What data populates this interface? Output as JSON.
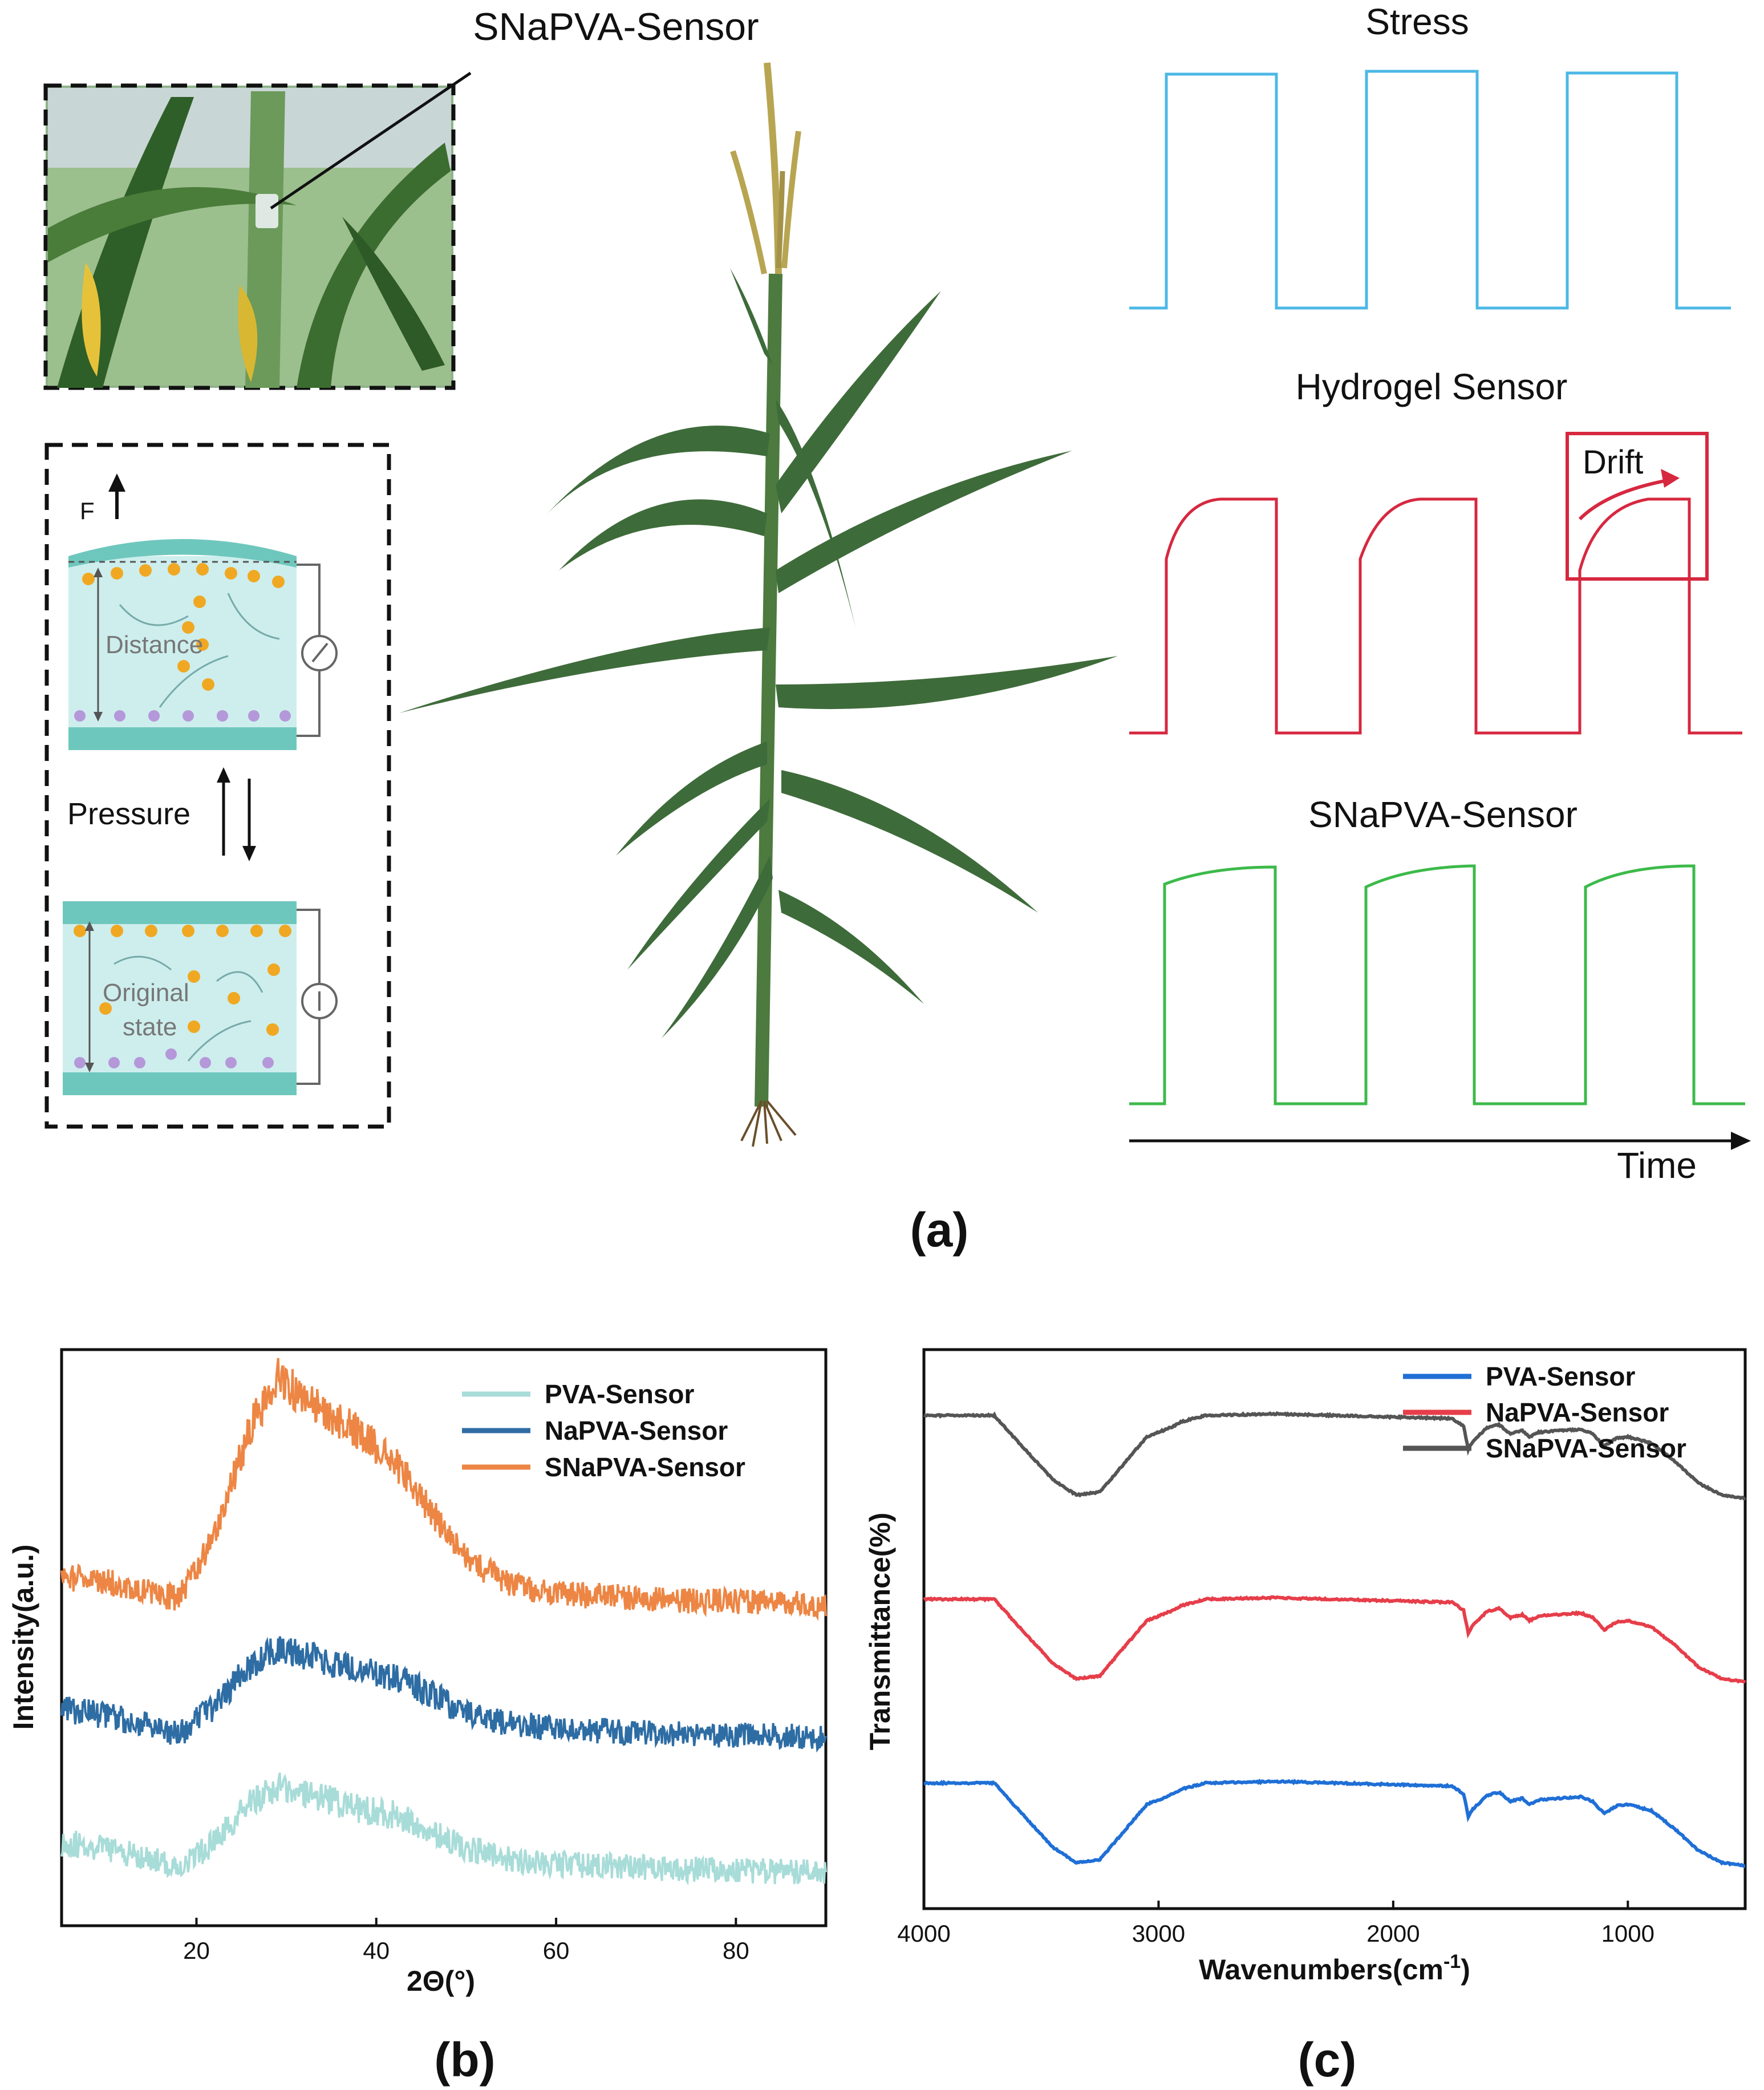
{
  "panel_a": {
    "label": "(a)",
    "photo_caption": "SNaPVA-Sensor",
    "schematic": {
      "force_label": "F",
      "distance_label": "Distance",
      "pressure_label": "Pressure",
      "original_label_1": "Original",
      "original_label_2": "state"
    },
    "signals": [
      {
        "title": "Stress",
        "color": "#4db8e6",
        "shape": "square"
      },
      {
        "title": "Hydrogel Sensor",
        "color": "#d6283f",
        "shape": "drift"
      },
      {
        "title": "SNaPVA-Sensor",
        "color": "#3cba4a",
        "shape": "stable"
      }
    ],
    "drift_label": "Drift",
    "time_label": "Time"
  },
  "panel_b": {
    "label": "(b)",
    "chart_data": {
      "type": "line",
      "title": "",
      "xlabel": "2Θ(°)",
      "ylabel": "Intensity(a.u.)",
      "xlim": [
        5,
        90
      ],
      "xticks": [
        20,
        40,
        60,
        80
      ],
      "yticks": [],
      "legend_position": "top-right",
      "series": [
        {
          "name": "PVA-Sensor",
          "color": "#a8dcd8",
          "offset": 0,
          "points": [
            [
              5,
              0.45
            ],
            [
              10,
              0.4
            ],
            [
              15,
              0.3
            ],
            [
              18,
              0.22
            ],
            [
              22,
              0.45
            ],
            [
              26,
              0.8
            ],
            [
              29,
              0.95
            ],
            [
              33,
              0.88
            ],
            [
              38,
              0.75
            ],
            [
              42,
              0.7
            ],
            [
              46,
              0.55
            ],
            [
              50,
              0.4
            ],
            [
              55,
              0.3
            ],
            [
              60,
              0.26
            ],
            [
              70,
              0.22
            ],
            [
              80,
              0.2
            ],
            [
              90,
              0.18
            ]
          ]
        },
        {
          "name": "NaPVA-Sensor",
          "color": "#2e6da4",
          "offset": 1.2,
          "points": [
            [
              5,
              0.45
            ],
            [
              10,
              0.4
            ],
            [
              15,
              0.3
            ],
            [
              18,
              0.22
            ],
            [
              22,
              0.48
            ],
            [
              26,
              0.85
            ],
            [
              29,
              1.0
            ],
            [
              33,
              0.92
            ],
            [
              38,
              0.82
            ],
            [
              42,
              0.75
            ],
            [
              46,
              0.6
            ],
            [
              50,
              0.42
            ],
            [
              55,
              0.32
            ],
            [
              60,
              0.28
            ],
            [
              70,
              0.24
            ],
            [
              80,
              0.22
            ],
            [
              90,
              0.2
            ]
          ]
        },
        {
          "name": "SNaPVA-Sensor",
          "color": "#ed8644",
          "offset": 2.4,
          "points": [
            [
              5,
              0.45
            ],
            [
              10,
              0.4
            ],
            [
              15,
              0.3
            ],
            [
              18,
              0.25
            ],
            [
              22,
              0.8
            ],
            [
              26,
              1.8
            ],
            [
              29,
              2.25
            ],
            [
              33,
              2.0
            ],
            [
              38,
              1.75
            ],
            [
              42,
              1.5
            ],
            [
              46,
              1.05
            ],
            [
              50,
              0.6
            ],
            [
              55,
              0.38
            ],
            [
              60,
              0.3
            ],
            [
              70,
              0.25
            ],
            [
              80,
              0.22
            ],
            [
              90,
              0.2
            ]
          ]
        }
      ]
    }
  },
  "panel_c": {
    "label": "(c)",
    "chart_data": {
      "type": "line",
      "title": "",
      "xlabel": "Wavenumbers(cm",
      "xlabel_sup": "-1",
      "xlabel_end": ")",
      "ylabel": "Transmittance(%)",
      "xlim": [
        4000,
        500
      ],
      "xticks": [
        4000,
        3000,
        2000,
        1000
      ],
      "yticks": [],
      "legend_position": "top-right",
      "series": [
        {
          "name": "PVA-Sensor",
          "color": "#1f6fd6",
          "offset": 0,
          "points": [
            [
              4000,
              0.92
            ],
            [
              3700,
              0.92
            ],
            [
              3600,
              0.75
            ],
            [
              3450,
              0.5
            ],
            [
              3350,
              0.4
            ],
            [
              3250,
              0.42
            ],
            [
              3150,
              0.6
            ],
            [
              3050,
              0.78
            ],
            [
              2950,
              0.84
            ],
            [
              2900,
              0.88
            ],
            [
              2800,
              0.92
            ],
            [
              2500,
              0.93
            ],
            [
              2000,
              0.91
            ],
            [
              1750,
              0.9
            ],
            [
              1700,
              0.85
            ],
            [
              1680,
              0.7
            ],
            [
              1660,
              0.75
            ],
            [
              1600,
              0.84
            ],
            [
              1550,
              0.86
            ],
            [
              1500,
              0.8
            ],
            [
              1450,
              0.82
            ],
            [
              1420,
              0.78
            ],
            [
              1380,
              0.81
            ],
            [
              1300,
              0.82
            ],
            [
              1200,
              0.83
            ],
            [
              1150,
              0.8
            ],
            [
              1100,
              0.72
            ],
            [
              1050,
              0.77
            ],
            [
              1000,
              0.78
            ],
            [
              900,
              0.74
            ],
            [
              800,
              0.62
            ],
            [
              700,
              0.48
            ],
            [
              600,
              0.4
            ],
            [
              500,
              0.38
            ]
          ]
        },
        {
          "name": "NaPVA-Sensor",
          "color": "#e63e4a",
          "offset": 1.2,
          "points": [
            [
              4000,
              0.92
            ],
            [
              3700,
              0.92
            ],
            [
              3600,
              0.75
            ],
            [
              3450,
              0.5
            ],
            [
              3350,
              0.4
            ],
            [
              3250,
              0.42
            ],
            [
              3150,
              0.6
            ],
            [
              3050,
              0.78
            ],
            [
              2950,
              0.84
            ],
            [
              2900,
              0.88
            ],
            [
              2800,
              0.92
            ],
            [
              2500,
              0.93
            ],
            [
              2000,
              0.91
            ],
            [
              1750,
              0.9
            ],
            [
              1700,
              0.85
            ],
            [
              1680,
              0.7
            ],
            [
              1660,
              0.75
            ],
            [
              1600,
              0.84
            ],
            [
              1550,
              0.86
            ],
            [
              1500,
              0.8
            ],
            [
              1450,
              0.82
            ],
            [
              1420,
              0.78
            ],
            [
              1380,
              0.81
            ],
            [
              1300,
              0.82
            ],
            [
              1200,
              0.83
            ],
            [
              1150,
              0.8
            ],
            [
              1100,
              0.72
            ],
            [
              1050,
              0.77
            ],
            [
              1000,
              0.78
            ],
            [
              900,
              0.74
            ],
            [
              800,
              0.62
            ],
            [
              700,
              0.48
            ],
            [
              600,
              0.4
            ],
            [
              500,
              0.38
            ]
          ]
        },
        {
          "name": "SNaPVA-Sensor",
          "color": "#555555",
          "offset": 2.4,
          "points": [
            [
              4000,
              0.92
            ],
            [
              3700,
              0.92
            ],
            [
              3600,
              0.75
            ],
            [
              3450,
              0.5
            ],
            [
              3350,
              0.4
            ],
            [
              3250,
              0.42
            ],
            [
              3150,
              0.6
            ],
            [
              3050,
              0.78
            ],
            [
              2950,
              0.84
            ],
            [
              2900,
              0.88
            ],
            [
              2800,
              0.92
            ],
            [
              2500,
              0.93
            ],
            [
              2000,
              0.91
            ],
            [
              1750,
              0.9
            ],
            [
              1700,
              0.85
            ],
            [
              1680,
              0.7
            ],
            [
              1660,
              0.75
            ],
            [
              1600,
              0.84
            ],
            [
              1550,
              0.86
            ],
            [
              1500,
              0.8
            ],
            [
              1450,
              0.82
            ],
            [
              1420,
              0.78
            ],
            [
              1380,
              0.81
            ],
            [
              1300,
              0.82
            ],
            [
              1200,
              0.83
            ],
            [
              1150,
              0.8
            ],
            [
              1100,
              0.72
            ],
            [
              1050,
              0.77
            ],
            [
              1000,
              0.78
            ],
            [
              900,
              0.74
            ],
            [
              800,
              0.62
            ],
            [
              700,
              0.48
            ],
            [
              600,
              0.4
            ],
            [
              500,
              0.38
            ]
          ]
        }
      ]
    }
  },
  "colors": {
    "hydrogel_fill": "#cdeeed",
    "electrode": "#6ec7bd",
    "dot_orange": "#f0a823",
    "dot_purple": "#b598d9",
    "leaf": "#3e6b3a",
    "tassel": "#b8a552"
  }
}
